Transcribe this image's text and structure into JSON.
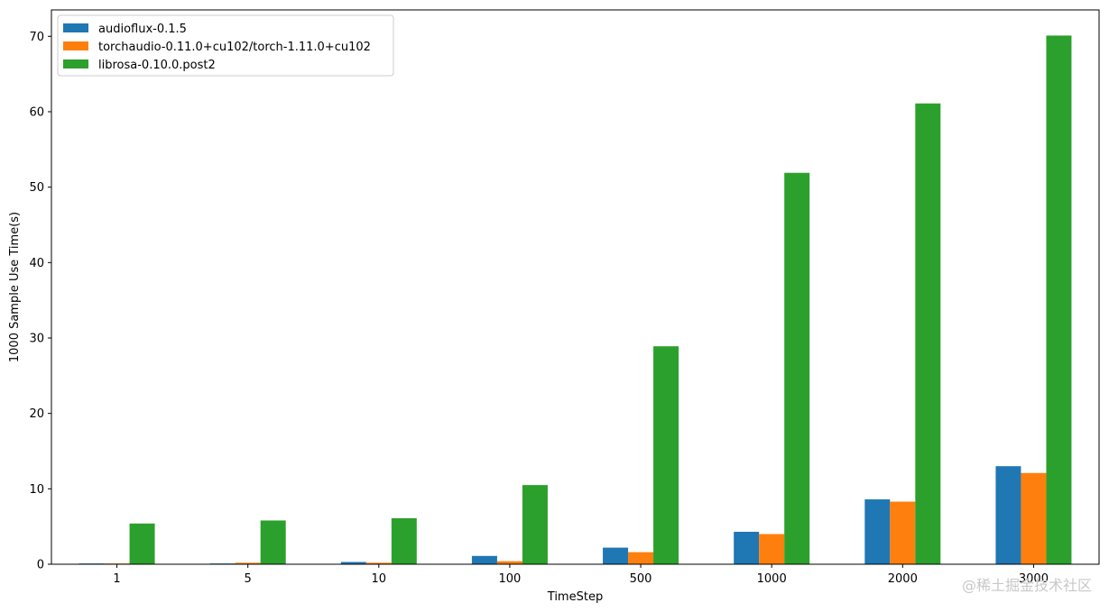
{
  "chart_data": {
    "type": "bar",
    "xlabel": "TimeStep",
    "ylabel": "1000 Sample Use Time(s)",
    "categories": [
      "1",
      "5",
      "10",
      "100",
      "500",
      "1000",
      "2000",
      "3000"
    ],
    "ylim": [
      0,
      73.5
    ],
    "yticks": [
      0,
      10,
      20,
      30,
      40,
      50,
      60,
      70
    ],
    "grid": false,
    "legend_position": "top-left",
    "series": [
      {
        "name": "audioflux-0.1.5",
        "color": "#1f77b4",
        "values": [
          0.1,
          0.1,
          0.3,
          1.1,
          2.2,
          4.3,
          8.6,
          13.0
        ]
      },
      {
        "name": "torchaudio-0.11.0+cu102/torch-1.11.0+cu102",
        "color": "#ff7f0e",
        "values": [
          0.1,
          0.2,
          0.2,
          0.4,
          1.6,
          4.0,
          8.3,
          12.1
        ]
      },
      {
        "name": "librosa-0.10.0.post2",
        "color": "#2ca02c",
        "values": [
          5.4,
          5.8,
          6.1,
          10.5,
          28.9,
          51.9,
          61.1,
          70.1
        ]
      }
    ]
  },
  "watermark": "@稀土掘金技术社区"
}
